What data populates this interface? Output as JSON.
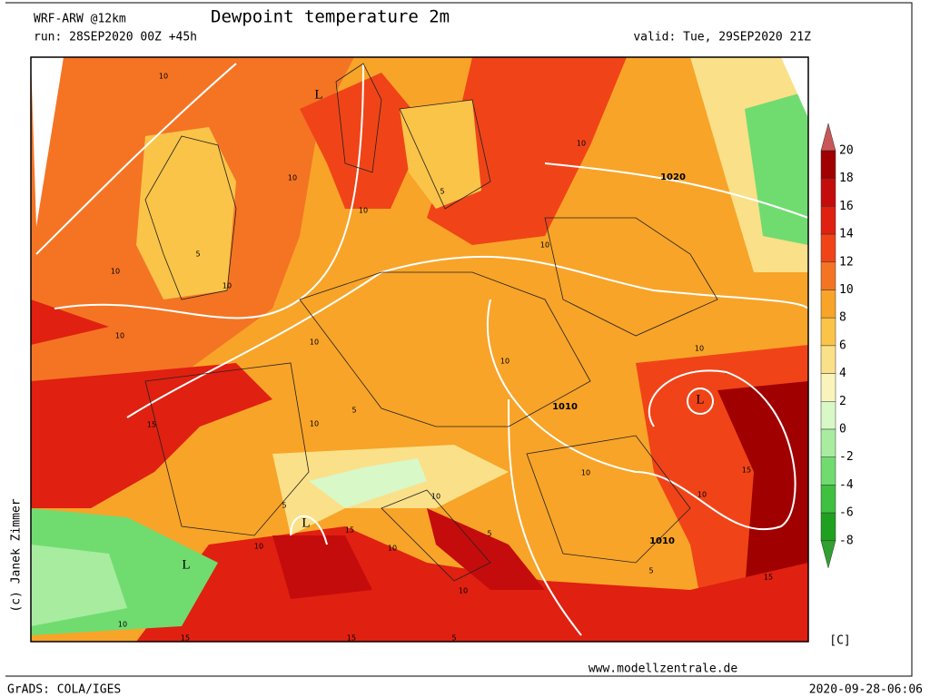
{
  "header": {
    "model": "WRF-ARW @12km",
    "title": "Dewpoint temperature 2m",
    "run": "run: 28SEP2020 00Z +45h",
    "valid": "valid: Tue, 29SEP2020 21Z"
  },
  "colorbar": {
    "ticks": [
      20,
      18,
      16,
      14,
      12,
      10,
      8,
      6,
      4,
      2,
      0,
      -2,
      -4,
      -6,
      -8
    ],
    "colors": [
      "#c85858",
      "#a00000",
      "#c40c0c",
      "#e02010",
      "#f04418",
      "#f47424",
      "#f8a428",
      "#fac448",
      "#fae088",
      "#faf4bc",
      "#d8f8c8",
      "#a8eca0",
      "#70dc70",
      "#40c040",
      "#20a020",
      "#30a030"
    ],
    "unit": "[C]"
  },
  "map": {
    "dewpoint_labels": [
      10,
      10,
      10,
      5,
      10,
      10,
      5,
      10,
      10,
      10,
      5,
      10,
      15,
      10,
      10,
      15,
      10,
      5,
      10,
      15,
      10,
      5,
      10,
      5,
      10,
      15,
      10,
      15,
      5,
      10,
      15,
      10
    ],
    "pressure_labels": [
      1020,
      1010,
      1010
    ],
    "low_labels": [
      "L",
      "L",
      "L",
      "L"
    ]
  },
  "footer": {
    "copyright": "(c) Janek Zimmer",
    "url": "www.modellzentrale.de",
    "software": "GrADS: COLA/IGES",
    "timestamp": "2020-09-28-06:06"
  }
}
